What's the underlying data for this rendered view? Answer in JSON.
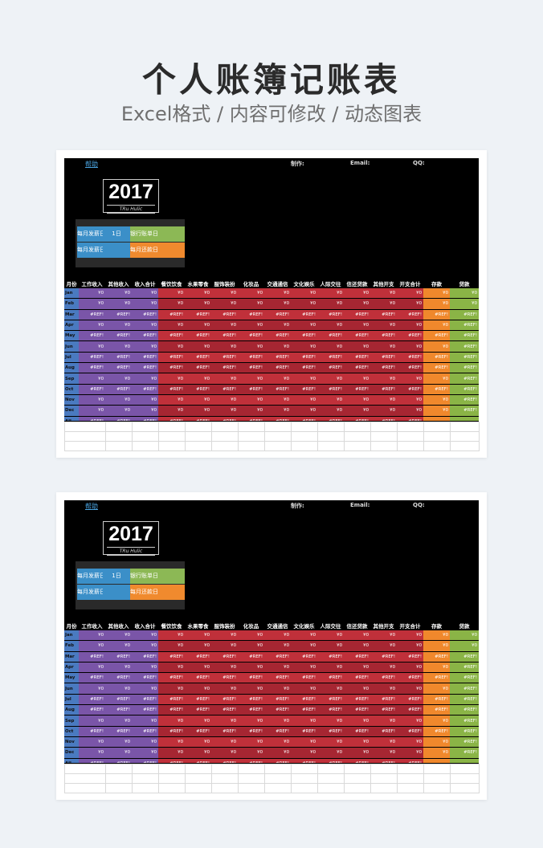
{
  "page": {
    "title": "个人账簿记账表",
    "subtitle": "Excel格式 / 内容可修改 / 动态图表"
  },
  "sheet": {
    "help_link": "帮助",
    "maker_label": "制作:",
    "email_label": "Email:",
    "qq_label": "QQ:",
    "year": "2017",
    "year_caption": "TRu Hulic",
    "info": {
      "payday_label": "每月发薪日",
      "payday_value": "1日",
      "bank_label": "银行账单日",
      "bank_value": "",
      "salary_label": "每月发薪日",
      "salary_value": "",
      "repay_label": "每月还款日",
      "repay_value": ""
    },
    "headers": [
      "月份",
      "工作收入",
      "其他收入",
      "收入合计",
      "餐饮饮食",
      "水果零食",
      "服饰装扮",
      "化妆品",
      "交通通信",
      "文化娱乐",
      "人际交往",
      "信还贷款",
      "其他开支",
      "开支合计",
      "存款",
      "贷款"
    ],
    "rows": [
      [
        "Jan",
        "¥0",
        "¥0",
        "¥0",
        "¥0",
        "¥0",
        "¥0",
        "¥0",
        "¥0",
        "¥0",
        "¥0",
        "¥0",
        "¥0",
        "¥0",
        "¥0",
        "¥0"
      ],
      [
        "Feb",
        "¥0",
        "¥0",
        "¥0",
        "¥0",
        "¥0",
        "¥0",
        "¥0",
        "¥0",
        "¥0",
        "¥0",
        "¥0",
        "¥0",
        "¥0",
        "¥0",
        "¥0"
      ],
      [
        "Mar",
        "#REF!",
        "#REF!",
        "#REF!",
        "#REF!",
        "#REF!",
        "#REF!",
        "#REF!",
        "#REF!",
        "#REF!",
        "#REF!",
        "#REF!",
        "#REF!",
        "#REF!",
        "#REF!",
        "#REF!"
      ],
      [
        "Apr",
        "¥0",
        "¥0",
        "¥0",
        "¥0",
        "¥0",
        "¥0",
        "¥0",
        "¥0",
        "¥0",
        "¥0",
        "¥0",
        "¥0",
        "¥0",
        "¥0",
        "#REF!"
      ],
      [
        "May",
        "#REF!",
        "#REF!",
        "#REF!",
        "#REF!",
        "#REF!",
        "#REF!",
        "#REF!",
        "#REF!",
        "#REF!",
        "#REF!",
        "#REF!",
        "#REF!",
        "#REF!",
        "#REF!",
        "#REF!"
      ],
      [
        "Jun",
        "¥0",
        "¥0",
        "¥0",
        "¥0",
        "¥0",
        "¥0",
        "¥0",
        "¥0",
        "¥0",
        "¥0",
        "¥0",
        "¥0",
        "¥0",
        "¥0",
        "#REF!"
      ],
      [
        "Jul",
        "#REF!",
        "#REF!",
        "#REF!",
        "#REF!",
        "#REF!",
        "#REF!",
        "#REF!",
        "#REF!",
        "#REF!",
        "#REF!",
        "#REF!",
        "#REF!",
        "#REF!",
        "#REF!",
        "#REF!"
      ],
      [
        "Aug",
        "#REF!",
        "#REF!",
        "#REF!",
        "#REF!",
        "#REF!",
        "#REF!",
        "#REF!",
        "#REF!",
        "#REF!",
        "#REF!",
        "#REF!",
        "#REF!",
        "#REF!",
        "#REF!",
        "#REF!"
      ],
      [
        "Sep",
        "¥0",
        "¥0",
        "¥0",
        "¥0",
        "¥0",
        "¥0",
        "¥0",
        "¥0",
        "¥0",
        "¥0",
        "¥0",
        "¥0",
        "¥0",
        "¥0",
        "#REF!"
      ],
      [
        "Oct",
        "#REF!",
        "#REF!",
        "#REF!",
        "#REF!",
        "#REF!",
        "#REF!",
        "#REF!",
        "#REF!",
        "#REF!",
        "#REF!",
        "#REF!",
        "#REF!",
        "#REF!",
        "#REF!",
        "#REF!"
      ],
      [
        "Nov",
        "¥0",
        "¥0",
        "¥0",
        "¥0",
        "¥0",
        "¥0",
        "¥0",
        "¥0",
        "¥0",
        "¥0",
        "¥0",
        "¥0",
        "¥0",
        "¥0",
        "#REF!"
      ],
      [
        "Dec",
        "¥0",
        "¥0",
        "¥0",
        "¥0",
        "¥0",
        "¥0",
        "¥0",
        "¥0",
        "¥0",
        "¥0",
        "¥0",
        "¥0",
        "¥0",
        "¥0",
        "#REF!"
      ],
      [
        "All",
        "#REF!",
        "#REF!",
        "#REF!",
        "#REF!",
        "#REF!",
        "#REF!",
        "#REF!",
        "#REF!",
        "#REF!",
        "#REF!",
        "#REF!",
        "#REF!",
        "#REF!",
        "",
        ""
      ]
    ]
  },
  "colors": {
    "month": "#4a7ac0",
    "income": "#7a55a8",
    "expense_a": "#c0303a",
    "expense_b": "#a62632",
    "deposit": "#f0882c",
    "loan": "#8ab446",
    "info_blue": "#3b8fc8",
    "info_green": "#8cb855",
    "info_orange": "#f08a2e"
  }
}
